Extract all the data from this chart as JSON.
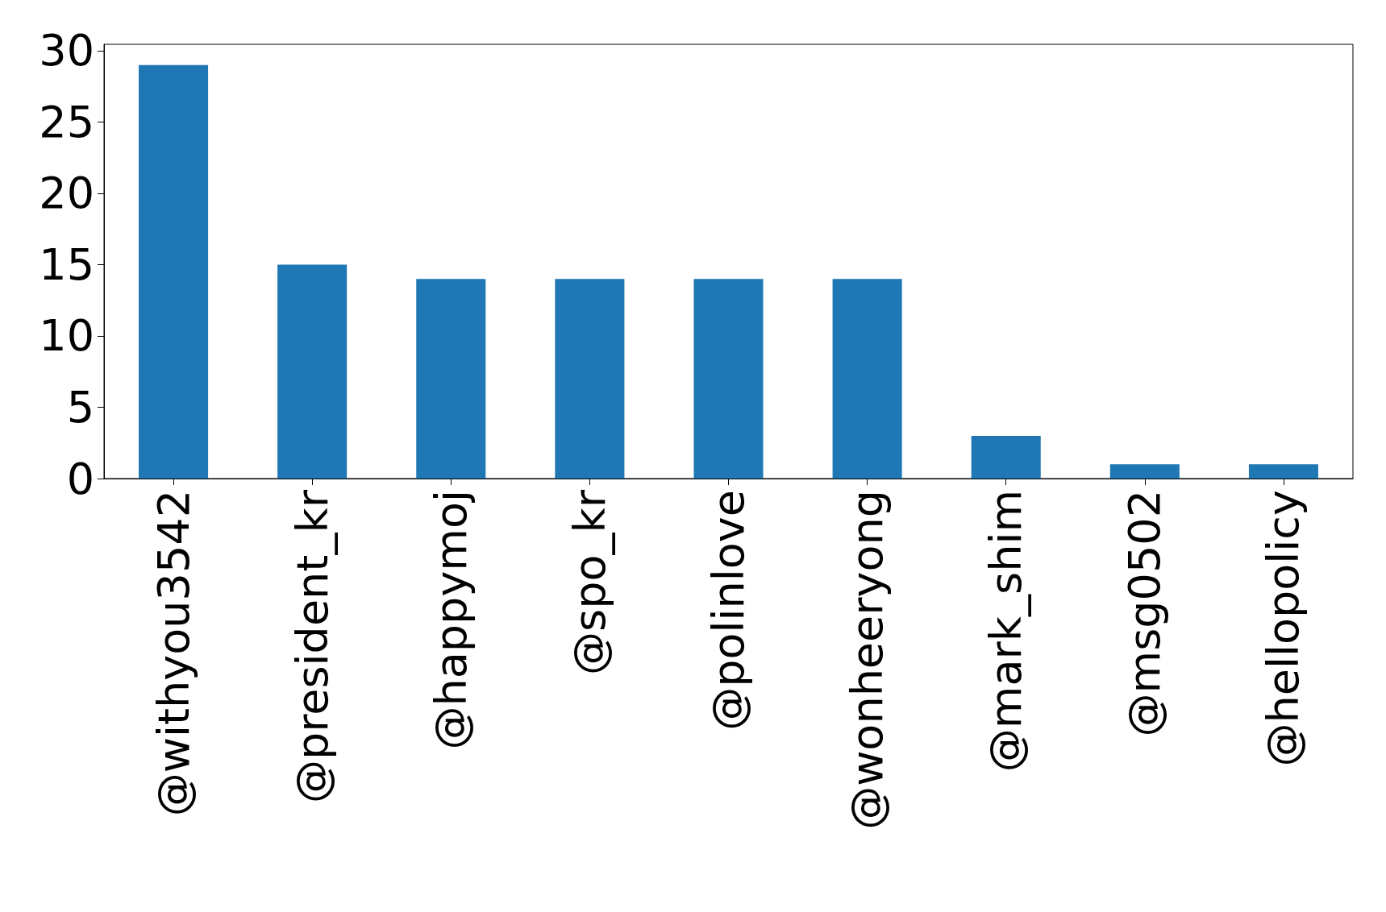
{
  "chart_data": {
    "type": "bar",
    "categories": [
      "@withyou3542",
      "@president_kr",
      "@happymoj",
      "@spo_kr",
      "@polinlove",
      "@wonheeryong",
      "@mark_shim",
      "@msg0502",
      "@hellopolicy"
    ],
    "values": [
      29,
      15,
      14,
      14,
      14,
      14,
      3,
      1,
      1
    ],
    "color": "#1f77b4",
    "ylim": [
      0,
      30.45
    ],
    "yticks": [
      0,
      5,
      10,
      15,
      20,
      25,
      30
    ],
    "grid": false
  }
}
